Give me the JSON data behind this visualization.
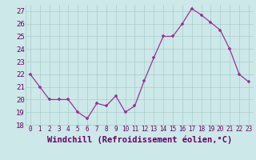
{
  "x": [
    0,
    1,
    2,
    3,
    4,
    5,
    6,
    7,
    8,
    9,
    10,
    11,
    12,
    13,
    14,
    15,
    16,
    17,
    18,
    19,
    20,
    21,
    22,
    23
  ],
  "y": [
    22,
    21,
    20,
    20,
    20,
    19,
    18.5,
    19.7,
    19.5,
    20.3,
    19,
    19.5,
    21.5,
    23.3,
    25,
    25,
    26,
    27.2,
    26.7,
    26.1,
    25.5,
    24,
    22,
    21.4
  ],
  "line_color": "#993399",
  "marker": "+",
  "bg_color": "#cce8e8",
  "grid_color": "#aacccc",
  "xlabel": "Windchill (Refroidissement éolien,°C)",
  "ylim": [
    18,
    27.5
  ],
  "xlim": [
    -0.5,
    23.5
  ],
  "yticks": [
    18,
    19,
    20,
    21,
    22,
    23,
    24,
    25,
    26,
    27
  ],
  "xticks": [
    0,
    1,
    2,
    3,
    4,
    5,
    6,
    7,
    8,
    9,
    10,
    11,
    12,
    13,
    14,
    15,
    16,
    17,
    18,
    19,
    20,
    21,
    22,
    23
  ],
  "tick_color": "#660066",
  "xlabel_color": "#660066",
  "xlabel_fontsize": 7.5,
  "ytick_fontsize": 6.5,
  "xtick_fontsize": 5.5,
  "linewidth": 0.9,
  "markersize": 3.5
}
